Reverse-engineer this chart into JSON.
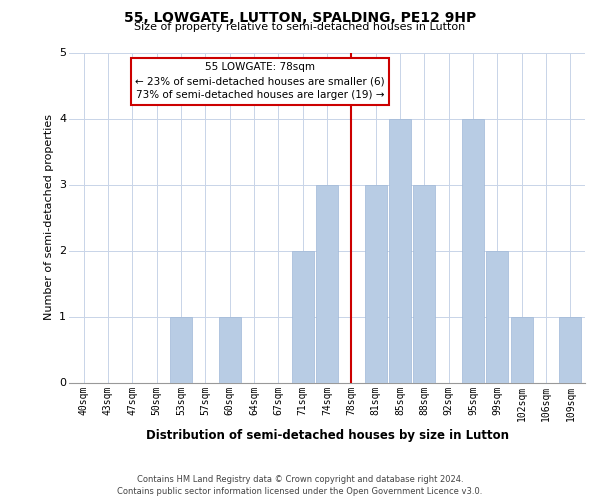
{
  "title": "55, LOWGATE, LUTTON, SPALDING, PE12 9HP",
  "subtitle": "Size of property relative to semi-detached houses in Lutton",
  "xlabel": "Distribution of semi-detached houses by size in Lutton",
  "ylabel": "Number of semi-detached properties",
  "categories": [
    "40sqm",
    "43sqm",
    "47sqm",
    "50sqm",
    "53sqm",
    "57sqm",
    "60sqm",
    "64sqm",
    "67sqm",
    "71sqm",
    "74sqm",
    "78sqm",
    "81sqm",
    "85sqm",
    "88sqm",
    "92sqm",
    "95sqm",
    "99sqm",
    "102sqm",
    "106sqm",
    "109sqm"
  ],
  "values": [
    0,
    0,
    0,
    0,
    1,
    0,
    1,
    0,
    0,
    2,
    3,
    0,
    3,
    4,
    3,
    0,
    4,
    2,
    1,
    0,
    1
  ],
  "bar_color": "#b8cce4",
  "bar_edge_color": "#a0b8d8",
  "marker_index": 11,
  "marker_color": "#cc0000",
  "ylim": [
    0,
    5
  ],
  "yticks": [
    0,
    1,
    2,
    3,
    4,
    5
  ],
  "annotation_title": "55 LOWGATE: 78sqm",
  "annotation_line1": "← 23% of semi-detached houses are smaller (6)",
  "annotation_line2": "73% of semi-detached houses are larger (19) →",
  "footer_line1": "Contains HM Land Registry data © Crown copyright and database right 2024.",
  "footer_line2": "Contains public sector information licensed under the Open Government Licence v3.0.",
  "background_color": "#ffffff",
  "grid_color": "#c8d4e8",
  "title_fontsize": 10,
  "subtitle_fontsize": 8,
  "ylabel_fontsize": 8,
  "xlabel_fontsize": 8.5,
  "tick_fontsize": 7,
  "annotation_fontsize": 7.5,
  "footer_fontsize": 6
}
